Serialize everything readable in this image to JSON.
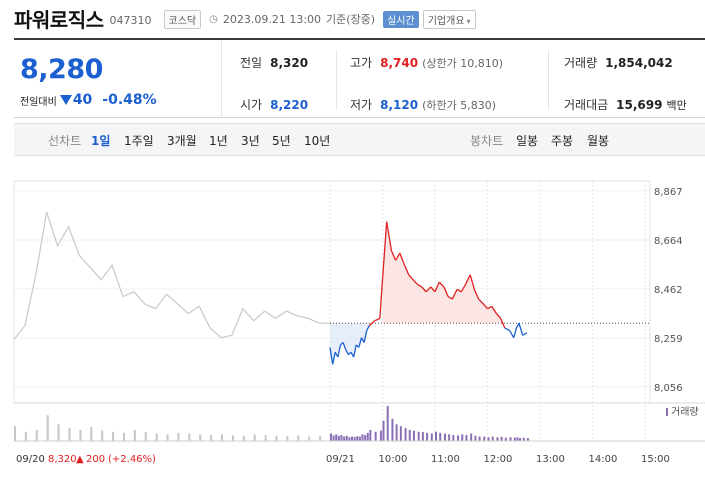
{
  "header": {
    "name": "파워로직스",
    "code": "047310",
    "market": "코스닥",
    "time": "2023.09.21 13:00",
    "basis": "기준(장중)",
    "live_button": "실시간",
    "company_button": "기업개요"
  },
  "quote": {
    "price": "8,280",
    "change_label": "전일대비",
    "change_amount": "40",
    "change_percent": "-0.48%",
    "prev_close": {
      "label": "전일",
      "value": "8,320"
    },
    "high": {
      "label": "고가",
      "value": "8,740",
      "sub": "(상한가 10,810)"
    },
    "volume": {
      "label": "거래량",
      "value": "1,854,042"
    },
    "open": {
      "label": "시가",
      "value": "8,220"
    },
    "low": {
      "label": "저가",
      "value": "8,120",
      "sub": "(하한가 5,830)"
    },
    "turnover": {
      "label": "거래대금",
      "value": "15,699",
      "unit": "백만"
    }
  },
  "periods": {
    "label": "선차트",
    "items": [
      "1일",
      "1주일",
      "3개월",
      "1년",
      "3년",
      "5년",
      "10년"
    ],
    "selected": "1일"
  },
  "candles": {
    "label": "봉차트",
    "items": [
      "일봉",
      "주봉",
      "월봉"
    ]
  },
  "colors": {
    "up": "#e02020",
    "down": "#1b5fd1",
    "prev_day_line": "#c8c8c8",
    "volume": "#8a6fb5"
  },
  "chart_data": {
    "type": "line",
    "price_axis_ticks": [
      "8,867",
      "8,664",
      "8,462",
      "8,259",
      "8,056"
    ],
    "ylim": [
      8056,
      8867
    ],
    "baseline": 8320,
    "time_axis_labels": [
      "09/20",
      "09/21",
      "10:00",
      "11:00",
      "12:00",
      "13:00",
      "14:00",
      "15:00"
    ],
    "volume_legend": "거래량",
    "prev_day_info": {
      "date": "09/20",
      "close": "8,320",
      "change": "200",
      "change_pct": "(+2.46%)"
    },
    "prev_day_series": {
      "name": "09/20",
      "values": [
        8253,
        8310,
        8520,
        8780,
        8640,
        8720,
        8600,
        8550,
        8500,
        8560,
        8430,
        8450,
        8400,
        8380,
        8440,
        8400,
        8360,
        8390,
        8300,
        8260,
        8270,
        8380,
        8330,
        8370,
        8340,
        8370,
        8350,
        8340,
        8320,
        8320
      ]
    },
    "today_series": {
      "name": "09/21",
      "x_hours": [
        9.0,
        9.05,
        9.1,
        9.15,
        9.2,
        9.25,
        9.3,
        9.35,
        9.4,
        9.45,
        9.5,
        9.55,
        9.6,
        9.65,
        9.7,
        9.75,
        9.85,
        9.95,
        10.0,
        10.08,
        10.17,
        10.25,
        10.33,
        10.42,
        10.5,
        10.58,
        10.67,
        10.75,
        10.83,
        10.92,
        11.0,
        11.08,
        11.17,
        11.25,
        11.33,
        11.42,
        11.5,
        11.58,
        11.67,
        11.75,
        11.83,
        11.92,
        12.0,
        12.08,
        12.17,
        12.25,
        12.33,
        12.42,
        12.5,
        12.55,
        12.6,
        12.67,
        12.75
      ],
      "values": [
        8220,
        8150,
        8200,
        8180,
        8230,
        8240,
        8210,
        8190,
        8200,
        8180,
        8230,
        8220,
        8260,
        8240,
        8290,
        8310,
        8330,
        8340,
        8500,
        8740,
        8620,
        8580,
        8610,
        8560,
        8520,
        8500,
        8480,
        8470,
        8450,
        8470,
        8450,
        8490,
        8470,
        8430,
        8420,
        8460,
        8450,
        8480,
        8520,
        8460,
        8420,
        8400,
        8380,
        8390,
        8360,
        8340,
        8300,
        8290,
        8260,
        8300,
        8320,
        8270,
        8280
      ]
    },
    "prev_day_volume": [
      40,
      25,
      30,
      70,
      45,
      35,
      30,
      38,
      28,
      25,
      22,
      30,
      24,
      20,
      18,
      22,
      20,
      18,
      16,
      18,
      15,
      14,
      18,
      16,
      14,
      13,
      15,
      12,
      14,
      12
    ],
    "today_volume": [
      20,
      15,
      18,
      14,
      16,
      12,
      14,
      10,
      12,
      11,
      13,
      12,
      18,
      16,
      22,
      30,
      25,
      28,
      55,
      95,
      60,
      45,
      40,
      35,
      30,
      28,
      25,
      24,
      22,
      20,
      25,
      22,
      20,
      18,
      16,
      15,
      18,
      16,
      20,
      14,
      12,
      12,
      10,
      12,
      10,
      11,
      9,
      10,
      9,
      10,
      8,
      9,
      8
    ]
  }
}
